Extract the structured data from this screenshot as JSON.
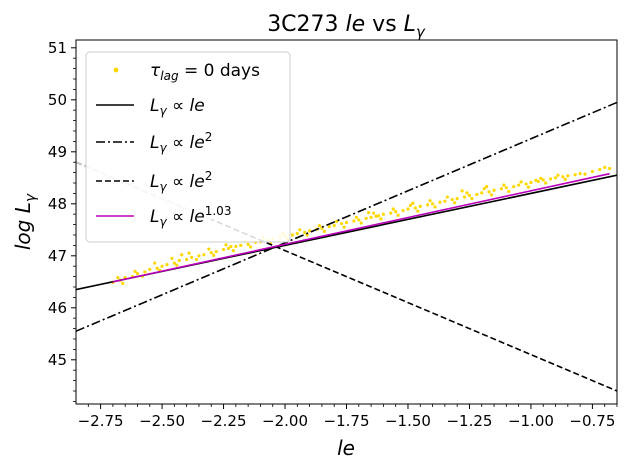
{
  "chart_data": {
    "type": "scatter",
    "title_prefix": "3C273 ",
    "title_var1": "le",
    "title_mid": " vs ",
    "title_var2": "L",
    "title_sub": "γ",
    "xlabel": "le",
    "ylabel_prefix": "log L",
    "ylabel_sub": "γ",
    "xlim": [
      -2.85,
      -0.65
    ],
    "ylim": [
      44.15,
      51.15
    ],
    "xticks": [
      -2.75,
      -2.5,
      -2.25,
      -2.0,
      -1.75,
      -1.5,
      -1.25,
      -1.0,
      -0.75
    ],
    "xtick_labels": [
      "−2.75",
      "−2.50",
      "−2.25",
      "−2.00",
      "−1.75",
      "−1.50",
      "−1.25",
      "−1.00",
      "−0.75"
    ],
    "yticks": [
      45,
      46,
      47,
      48,
      49,
      50,
      51
    ],
    "ytick_labels": [
      "45",
      "46",
      "47",
      "48",
      "49",
      "50",
      "51"
    ],
    "grid": false,
    "legend_position": "top-left",
    "colors": {
      "scatter": "#FFD700",
      "linear": "#000000",
      "quadratic": "#000000",
      "fit": "#BB00BB",
      "upper_tail": "#cccccc"
    },
    "series": [
      {
        "kind": "scatter",
        "legend": {
          "prefix": "τ",
          "sub": "lag",
          "suffix": " = 0  days"
        },
        "points": [
          [
            -2.7,
            46.49
          ],
          [
            -2.67,
            46.53
          ],
          [
            -2.65,
            46.58
          ],
          [
            -2.62,
            46.6
          ],
          [
            -2.6,
            46.66
          ],
          [
            -2.57,
            46.69
          ],
          [
            -2.55,
            46.74
          ],
          [
            -2.52,
            46.76
          ],
          [
            -2.5,
            46.8
          ],
          [
            -2.48,
            46.83
          ],
          [
            -2.45,
            46.86
          ],
          [
            -2.43,
            46.91
          ],
          [
            -2.4,
            46.93
          ],
          [
            -2.38,
            46.97
          ],
          [
            -2.35,
            47.0
          ],
          [
            -2.33,
            47.02
          ],
          [
            -2.3,
            47.06
          ],
          [
            -2.28,
            47.08
          ],
          [
            -2.25,
            47.12
          ],
          [
            -2.23,
            47.14
          ],
          [
            -2.2,
            47.18
          ],
          [
            -2.18,
            47.2
          ],
          [
            -2.15,
            47.22
          ],
          [
            -2.12,
            47.26
          ],
          [
            -2.1,
            47.27
          ],
          [
            -2.07,
            47.3
          ],
          [
            -2.05,
            47.33
          ],
          [
            -2.02,
            47.35
          ],
          [
            -2.0,
            47.38
          ],
          [
            -1.97,
            47.4
          ],
          [
            -1.95,
            47.43
          ],
          [
            -1.92,
            47.45
          ],
          [
            -1.9,
            47.48
          ],
          [
            -1.87,
            47.51
          ],
          [
            -1.85,
            47.53
          ],
          [
            -1.82,
            47.56
          ],
          [
            -1.8,
            47.58
          ],
          [
            -1.77,
            47.62
          ],
          [
            -1.75,
            47.64
          ],
          [
            -1.72,
            47.67
          ],
          [
            -1.7,
            47.69
          ],
          [
            -1.67,
            47.72
          ],
          [
            -1.65,
            47.74
          ],
          [
            -1.62,
            47.77
          ],
          [
            -1.6,
            47.8
          ],
          [
            -1.57,
            47.82
          ],
          [
            -1.55,
            47.85
          ],
          [
            -1.52,
            47.87
          ],
          [
            -1.5,
            47.9
          ],
          [
            -1.47,
            47.92
          ],
          [
            -1.45,
            47.95
          ],
          [
            -1.42,
            47.98
          ],
          [
            -1.4,
            48.0
          ],
          [
            -1.37,
            48.03
          ],
          [
            -1.35,
            48.05
          ],
          [
            -1.32,
            48.08
          ],
          [
            -1.3,
            48.1
          ],
          [
            -1.27,
            48.13
          ],
          [
            -1.25,
            48.16
          ],
          [
            -1.22,
            48.18
          ],
          [
            -1.2,
            48.21
          ],
          [
            -1.17,
            48.23
          ],
          [
            -1.15,
            48.26
          ],
          [
            -1.12,
            48.29
          ],
          [
            -1.1,
            48.31
          ],
          [
            -1.07,
            48.33
          ],
          [
            -1.05,
            48.36
          ],
          [
            -1.02,
            48.38
          ],
          [
            -1.0,
            48.41
          ],
          [
            -0.97,
            48.43
          ],
          [
            -0.95,
            48.46
          ],
          [
            -0.92,
            48.48
          ],
          [
            -0.9,
            48.5
          ],
          [
            -0.87,
            48.52
          ],
          [
            -0.85,
            48.54
          ],
          [
            -0.82,
            48.56
          ],
          [
            -0.8,
            48.58
          ],
          [
            -0.75,
            48.62
          ],
          [
            -0.72,
            48.66
          ],
          [
            -0.68,
            48.68
          ],
          [
            -2.68,
            46.58
          ],
          [
            -2.61,
            46.7
          ],
          [
            -2.53,
            46.86
          ],
          [
            -2.46,
            46.95
          ],
          [
            -2.39,
            47.05
          ],
          [
            -2.31,
            47.13
          ],
          [
            -2.24,
            47.21
          ],
          [
            -2.16,
            47.28
          ],
          [
            -2.09,
            47.35
          ],
          [
            -2.01,
            47.43
          ],
          [
            -1.94,
            47.5
          ],
          [
            -1.86,
            47.58
          ],
          [
            -1.79,
            47.66
          ],
          [
            -1.71,
            47.74
          ],
          [
            -1.64,
            47.82
          ],
          [
            -1.56,
            47.9
          ],
          [
            -1.49,
            47.97
          ],
          [
            -1.41,
            48.06
          ],
          [
            -1.34,
            48.13
          ],
          [
            -1.26,
            48.21
          ],
          [
            -1.19,
            48.29
          ],
          [
            -1.11,
            48.36
          ],
          [
            -1.04,
            48.42
          ],
          [
            -0.96,
            48.49
          ],
          [
            -0.89,
            48.55
          ],
          [
            -2.66,
            46.47
          ],
          [
            -2.58,
            46.61
          ],
          [
            -2.51,
            46.72
          ],
          [
            -2.44,
            46.82
          ],
          [
            -2.36,
            46.93
          ],
          [
            -2.29,
            47.01
          ],
          [
            -2.21,
            47.1
          ],
          [
            -2.14,
            47.17
          ],
          [
            -2.06,
            47.24
          ],
          [
            -1.99,
            47.32
          ],
          [
            -1.91,
            47.4
          ],
          [
            -1.84,
            47.47
          ],
          [
            -1.76,
            47.55
          ],
          [
            -1.69,
            47.63
          ],
          [
            -1.61,
            47.71
          ],
          [
            -1.54,
            47.78
          ],
          [
            -1.46,
            47.86
          ],
          [
            -1.39,
            47.94
          ],
          [
            -1.31,
            48.02
          ],
          [
            -1.24,
            48.1
          ],
          [
            -1.16,
            48.17
          ],
          [
            -1.09,
            48.24
          ],
          [
            -1.01,
            48.32
          ],
          [
            -0.94,
            48.4
          ],
          [
            -0.86,
            48.47
          ],
          [
            -2.42,
            47.02
          ],
          [
            -2.22,
            47.18
          ],
          [
            -1.66,
            47.83
          ],
          [
            -1.63,
            47.76
          ],
          [
            -1.48,
            48.01
          ],
          [
            -1.28,
            48.25
          ],
          [
            -1.18,
            48.33
          ],
          [
            -0.98,
            48.45
          ],
          [
            -0.78,
            48.57
          ],
          [
            -0.7,
            48.7
          ]
        ]
      },
      {
        "kind": "line",
        "style": "solid",
        "legend": {
          "prefix": "L",
          "sub": "γ",
          "mid": " ∝ ",
          "var": "le",
          "sup": ""
        },
        "slope": 1.0,
        "intercept": 49.2
      },
      {
        "kind": "line",
        "style": "dashdot",
        "legend": {
          "prefix": "L",
          "sub": "γ",
          "mid": " ∝ ",
          "var": "le",
          "sup": "2"
        },
        "slope": 2.0,
        "intercept": 51.25
      },
      {
        "kind": "line",
        "style": "dashed",
        "legend": {
          "prefix": "L",
          "sub": "γ",
          "mid": " ∝ ",
          "var": "le",
          "sup": "2"
        },
        "slope": -2.0,
        "intercept": 43.1
      },
      {
        "kind": "line",
        "style": "solid",
        "legend": {
          "prefix": "L",
          "sub": "γ",
          "mid": " ∝ ",
          "var": "le",
          "sup": "1.03"
        },
        "slope": 1.03,
        "intercept": 49.28,
        "x_range": [
          -2.7,
          -0.68
        ]
      }
    ]
  }
}
